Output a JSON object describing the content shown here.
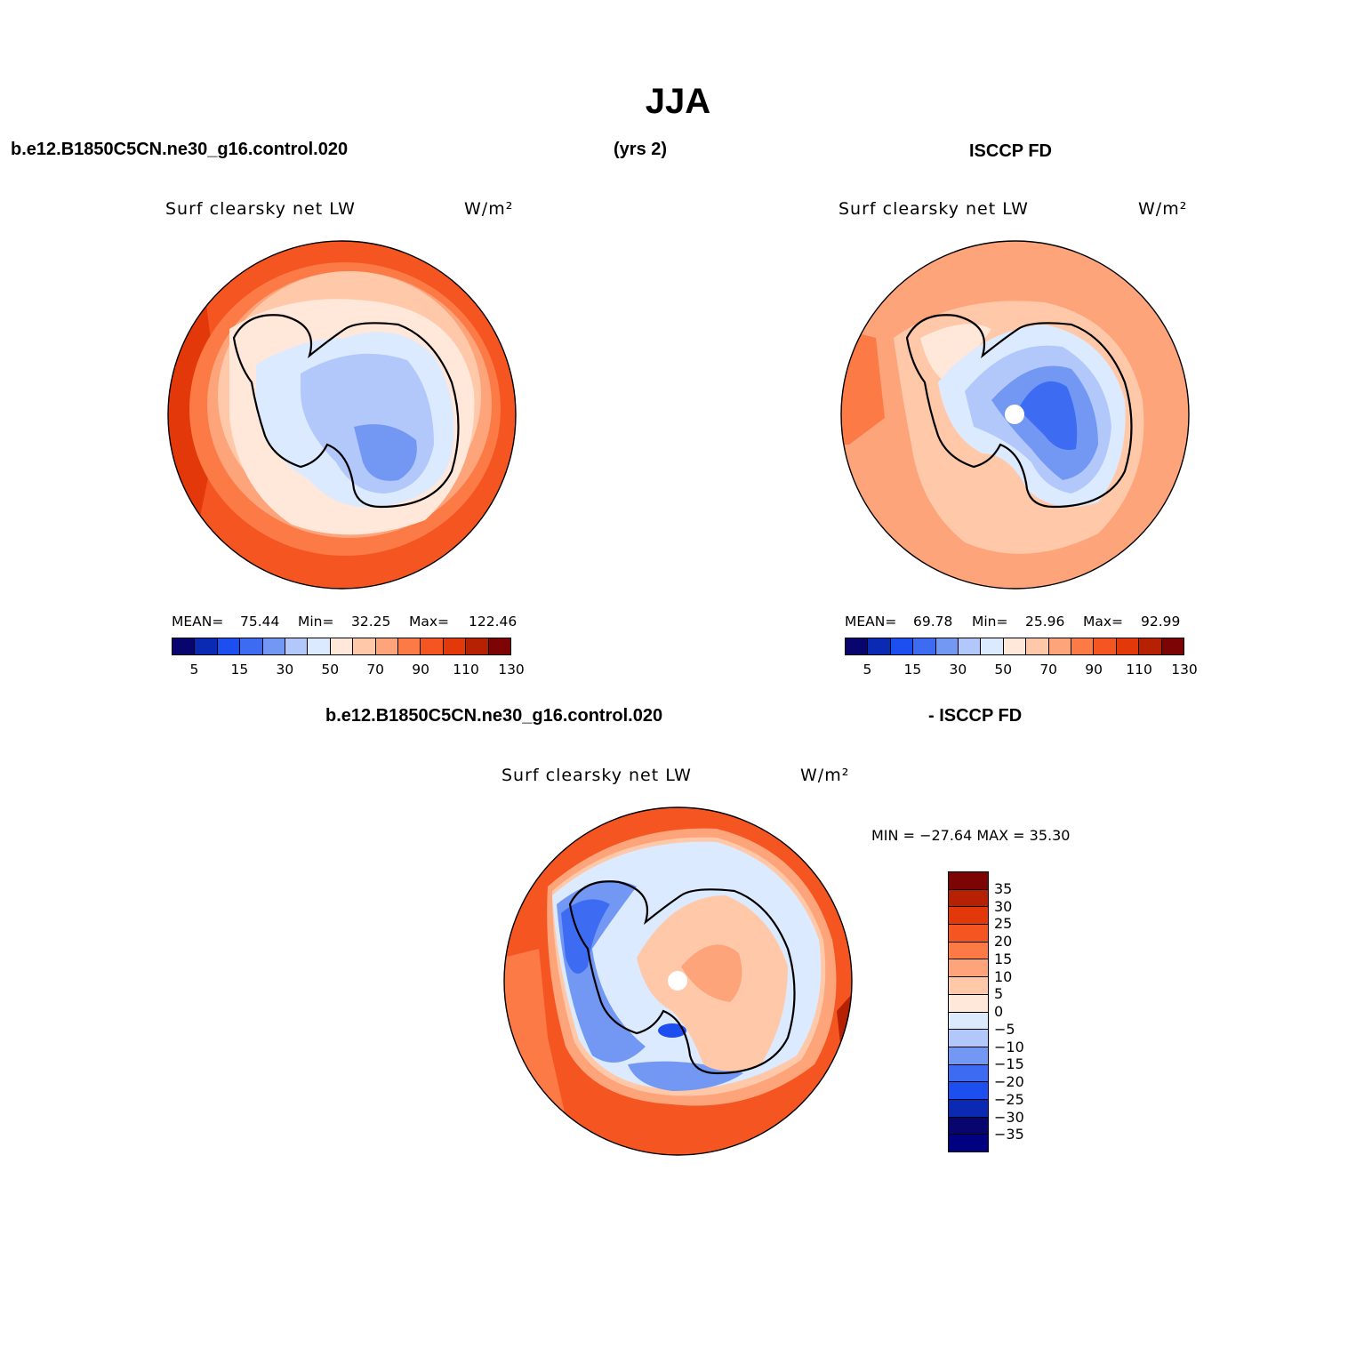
{
  "figure": {
    "title": "JJA",
    "case_name": "b.e12.B1850C5CN.ne30_g16.control.020",
    "years": "(yrs 2)",
    "obs_name": "ISCCP FD",
    "diff_case": "b.e12.B1850C5CN.ne30_g16.control.020",
    "diff_obs": "- ISCCP FD"
  },
  "palette_abs": [
    "#08066e",
    "#0a2ab4",
    "#1d4ff0",
    "#3d6cf2",
    "#7298f4",
    "#b2c8fb",
    "#dceaff",
    "#ffe7d9",
    "#ffc9a9",
    "#fda47a",
    "#fb7a45",
    "#f55621",
    "#e33809",
    "#b52102",
    "#7d0404"
  ],
  "palette_diff": [
    "#7d0404",
    "#b52102",
    "#e33809",
    "#f55621",
    "#fb7a45",
    "#fda47a",
    "#ffc9a9",
    "#ffe7d9",
    "#dceaff",
    "#b2c8fb",
    "#7298f4",
    "#3d6cf2",
    "#1d4ff0",
    "#0a2ab4",
    "#08066e",
    "#000080"
  ],
  "panels": {
    "model": {
      "title": "Surf clearsky net LW",
      "units": "W/m²",
      "mean_label": "MEAN=",
      "mean": "75.44",
      "min_label": "Min=",
      "min": "32.25",
      "max_label": "Max=",
      "max": "122.46",
      "ticks": [
        "5",
        "15",
        "30",
        "50",
        "70",
        "90",
        "110",
        "130"
      ]
    },
    "obs": {
      "title": "Surf clearsky net LW",
      "units": "W/m²",
      "mean_label": "MEAN=",
      "mean": "69.78",
      "min_label": "Min=",
      "min": "25.96",
      "max_label": "Max=",
      "max": "92.99",
      "ticks": [
        "5",
        "15",
        "30",
        "50",
        "70",
        "90",
        "110",
        "130"
      ]
    },
    "diff": {
      "title": "Surf clearsky net LW",
      "units": "W/m²",
      "minmax": "MIN = −27.64 MAX =  35.30",
      "ticks": [
        "35",
        "30",
        "25",
        "20",
        "15",
        "10",
        "5",
        "0",
        "−5",
        "−10",
        "−15",
        "−20",
        "−25",
        "−30",
        "−35"
      ]
    }
  }
}
